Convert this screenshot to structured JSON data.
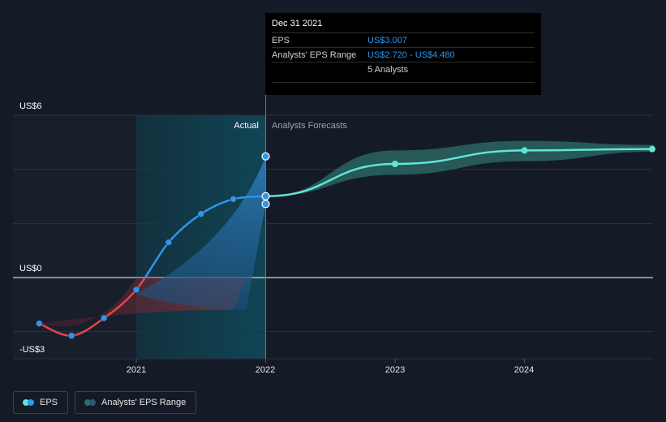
{
  "chart_data": {
    "type": "line",
    "y_tick_labels": [
      "US$6",
      "US$0",
      "-US$3"
    ],
    "x_tick_labels": [
      "2021",
      "2022",
      "2023",
      "2024"
    ],
    "ylim": [
      -3,
      6
    ],
    "region_labels": {
      "actual": "Actual",
      "forecast": "Analysts Forecasts"
    },
    "eps_actual": {
      "name": "EPS",
      "x": [
        2020.25,
        2020.5,
        2020.75,
        2021.0,
        2021.25,
        2021.5,
        2021.75,
        2022.0
      ],
      "y": [
        -1.7,
        -2.15,
        -1.5,
        -0.45,
        1.3,
        2.35,
        2.9,
        3.007
      ]
    },
    "eps_forecast": {
      "name": "EPS",
      "x": [
        2022.0,
        2023.0,
        2024.0,
        2025.0
      ],
      "y": [
        3.007,
        4.2,
        4.7,
        4.75
      ]
    },
    "analysts_range": {
      "name": "Analysts' EPS Range",
      "x": [
        2022.0,
        2023.0,
        2024.0,
        2025.0
      ],
      "low": [
        3.007,
        3.8,
        4.3,
        4.65
      ],
      "high": [
        3.007,
        4.7,
        5.05,
        4.9
      ]
    },
    "historical_range_points": [
      {
        "x": 2022.0,
        "high": 4.48,
        "low": 2.72
      }
    ],
    "colors": {
      "eps_positive": "#2f95e8",
      "eps_negative": "#e0474c",
      "forecast": "#5fe6d6",
      "range_fill": "#2c6f6a",
      "background": "#151b26"
    }
  },
  "tooltip": {
    "date": "Dec 31 2021",
    "eps_label": "EPS",
    "eps_value": "US$3.007",
    "range_label": "Analysts' EPS Range",
    "range_value": "US$2.720 - US$4.480",
    "analysts": "5 Analysts"
  },
  "legend": {
    "eps_label": "EPS",
    "range_label": "Analysts' EPS Range"
  }
}
